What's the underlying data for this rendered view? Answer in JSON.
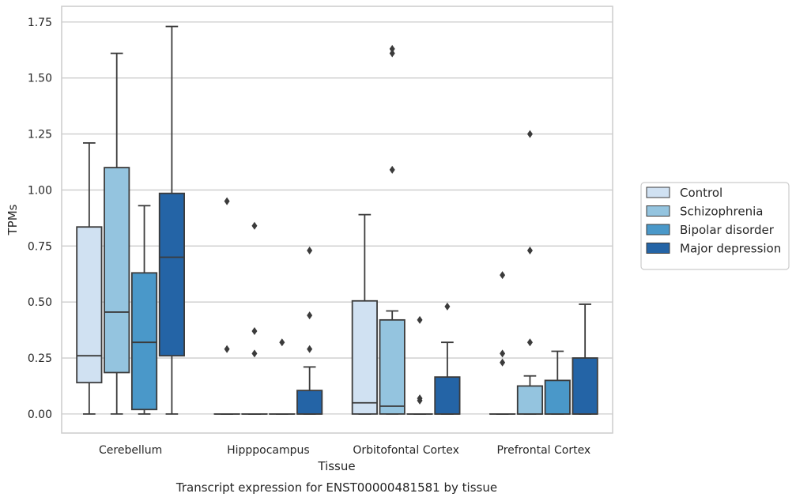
{
  "caption": "Transcript expression for ENST00000481581 by tissue",
  "chart_data": {
    "type": "box",
    "xlabel": "Tissue",
    "ylabel": "TPMs",
    "ylim": [
      -0.085,
      1.82
    ],
    "yticks": [
      0.0,
      0.25,
      0.5,
      0.75,
      1.0,
      1.25,
      1.5,
      1.75
    ],
    "ytick_labels": [
      "0.00",
      "0.25",
      "0.50",
      "0.75",
      "1.00",
      "1.25",
      "1.50",
      "1.75"
    ],
    "grid": true,
    "legend_position": "right",
    "categories": [
      "Cerebellum",
      "Hipppocampus",
      "Orbitofontal Cortex",
      "Prefrontal Cortex"
    ],
    "series": [
      {
        "name": "Control",
        "color": "#d0e1f2",
        "boxes": [
          {
            "whislo": 0.0,
            "q1": 0.14,
            "med": 0.26,
            "q3": 0.835,
            "whishi": 1.21,
            "fliers": []
          },
          {
            "whislo": 0.0,
            "q1": 0.0,
            "med": 0.0,
            "q3": 0.0,
            "whishi": 0.0,
            "fliers": [
              0.95,
              0.29
            ]
          },
          {
            "whislo": 0.0,
            "q1": 0.0,
            "med": 0.05,
            "q3": 0.505,
            "whishi": 0.89,
            "fliers": []
          },
          {
            "whislo": 0.0,
            "q1": 0.0,
            "med": 0.0,
            "q3": 0.0,
            "whishi": 0.0,
            "fliers": [
              0.62,
              0.27,
              0.23
            ]
          }
        ]
      },
      {
        "name": "Schizophrenia",
        "color": "#94c4df",
        "boxes": [
          {
            "whislo": 0.0,
            "q1": 0.185,
            "med": 0.455,
            "q3": 1.1,
            "whishi": 1.61,
            "fliers": []
          },
          {
            "whislo": 0.0,
            "q1": 0.0,
            "med": 0.0,
            "q3": 0.0,
            "whishi": 0.0,
            "fliers": [
              0.84,
              0.37,
              0.27
            ]
          },
          {
            "whislo": 0.0,
            "q1": 0.0,
            "med": 0.035,
            "q3": 0.42,
            "whishi": 0.46,
            "fliers": [
              1.63,
              1.61,
              1.09
            ]
          },
          {
            "whislo": 0.0,
            "q1": 0.0,
            "med": 0.0,
            "q3": 0.125,
            "whishi": 0.17,
            "fliers": [
              1.25,
              0.73,
              0.32
            ]
          }
        ]
      },
      {
        "name": "Bipolar disorder",
        "color": "#4a98c9",
        "boxes": [
          {
            "whislo": 0.0,
            "q1": 0.02,
            "med": 0.32,
            "q3": 0.63,
            "whishi": 0.93,
            "fliers": []
          },
          {
            "whislo": 0.0,
            "q1": 0.0,
            "med": 0.0,
            "q3": 0.0,
            "whishi": 0.0,
            "fliers": [
              0.32
            ]
          },
          {
            "whislo": 0.0,
            "q1": 0.0,
            "med": 0.0,
            "q3": 0.0,
            "whishi": 0.0,
            "fliers": [
              0.42,
              0.07,
              0.06
            ]
          },
          {
            "whislo": 0.0,
            "q1": 0.0,
            "med": 0.0,
            "q3": 0.15,
            "whishi": 0.28,
            "fliers": []
          }
        ]
      },
      {
        "name": "Major depression",
        "color": "#2464a6",
        "boxes": [
          {
            "whislo": 0.0,
            "q1": 0.26,
            "med": 0.7,
            "q3": 0.985,
            "whishi": 1.73,
            "fliers": []
          },
          {
            "whislo": 0.0,
            "q1": 0.0,
            "med": 0.0,
            "q3": 0.105,
            "whishi": 0.21,
            "fliers": [
              0.73,
              0.44,
              0.29
            ]
          },
          {
            "whislo": 0.0,
            "q1": 0.0,
            "med": 0.0,
            "q3": 0.165,
            "whishi": 0.32,
            "fliers": [
              0.48
            ]
          },
          {
            "whislo": 0.0,
            "q1": 0.0,
            "med": 0.0,
            "q3": 0.25,
            "whishi": 0.49,
            "fliers": []
          }
        ]
      }
    ]
  }
}
